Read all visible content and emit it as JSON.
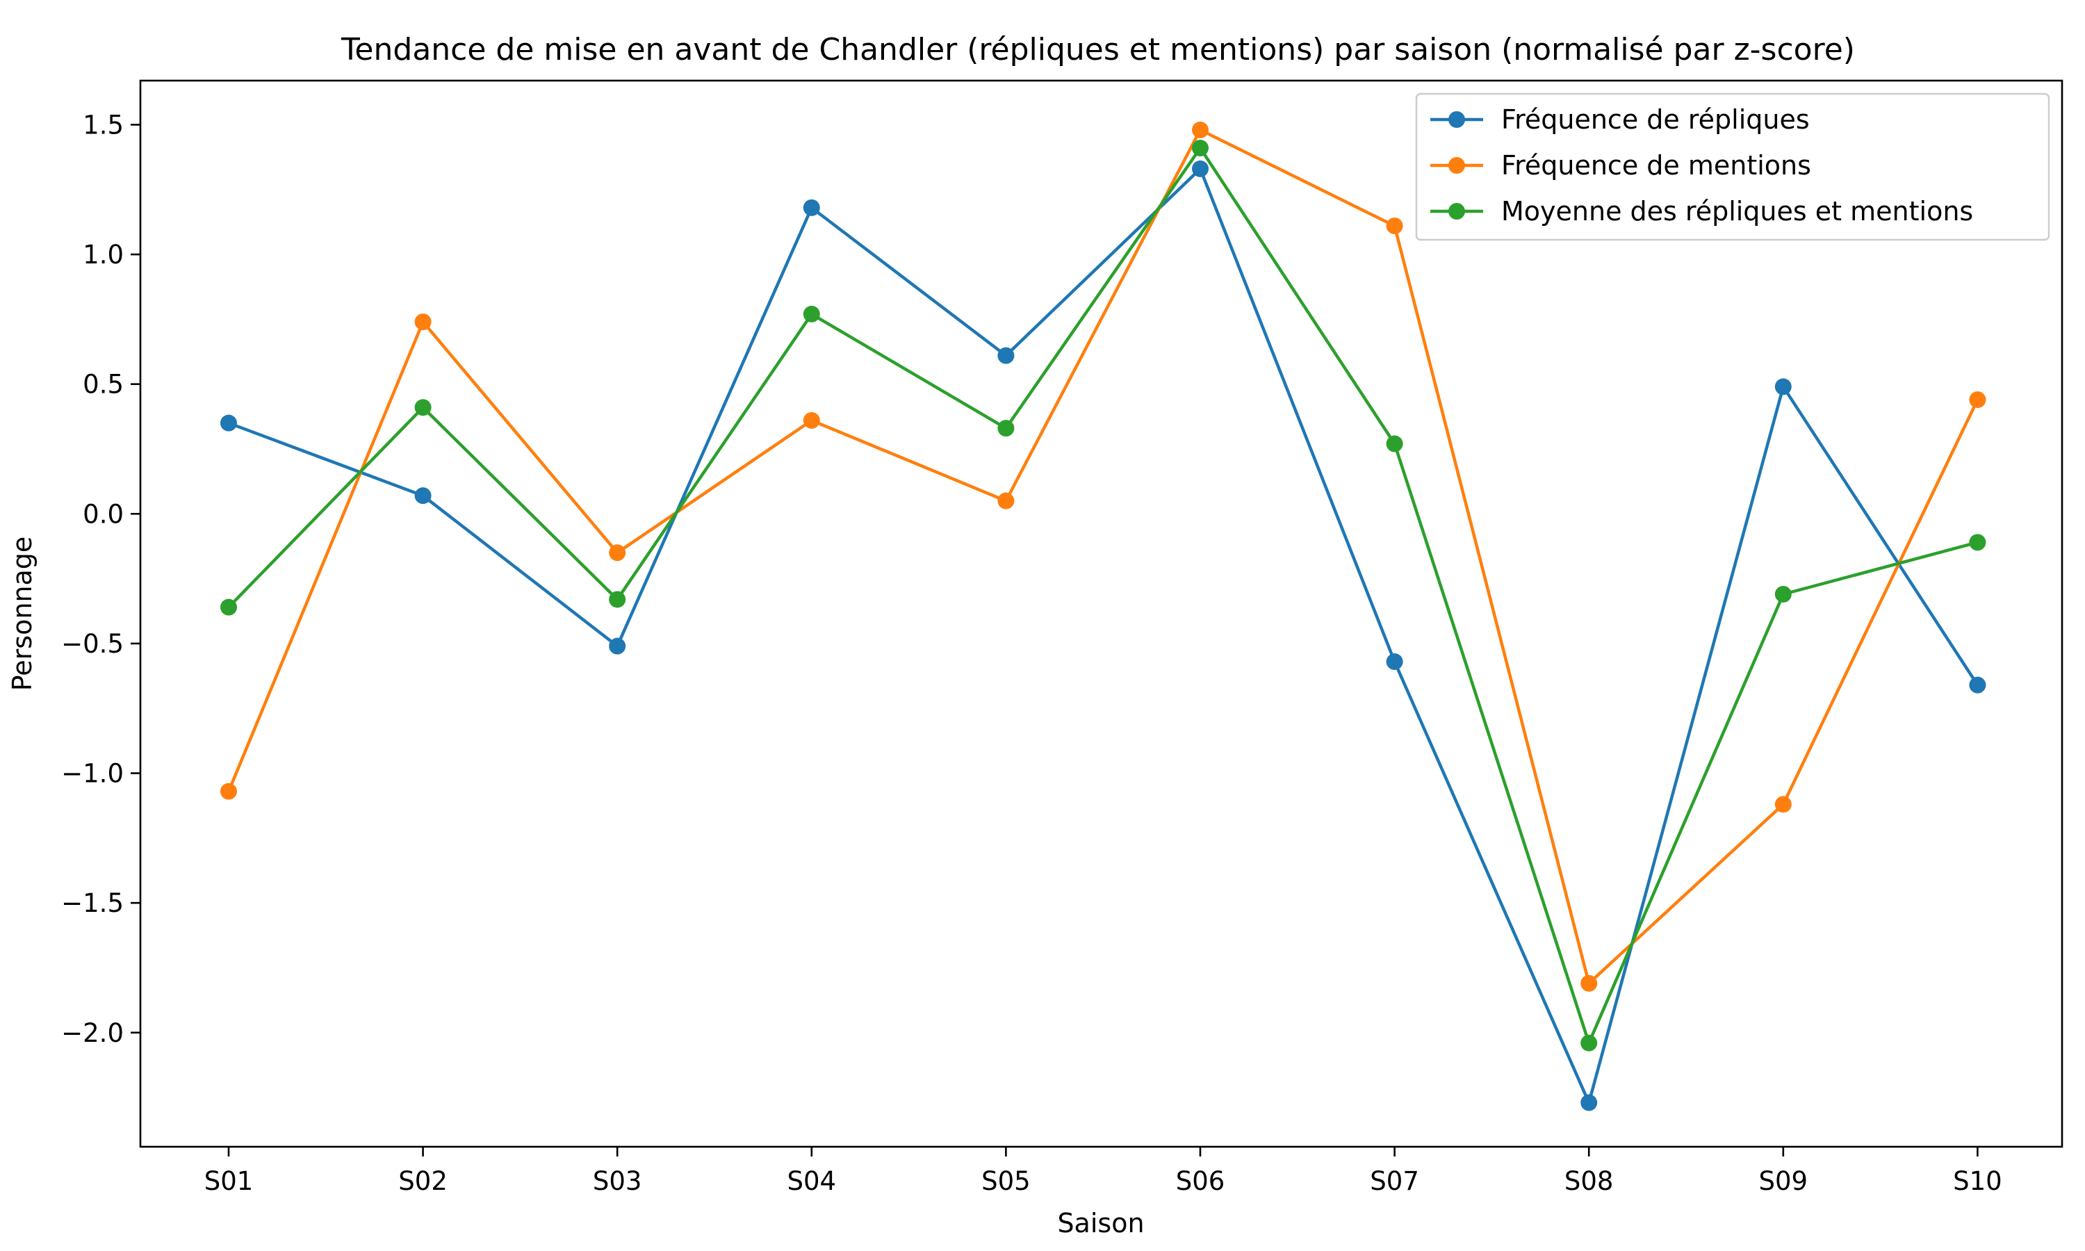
{
  "chart_data": {
    "type": "line",
    "title": "Tendance de mise en avant de Chandler (répliques et mentions) par saison (normalisé par z-score)",
    "xlabel": "Saison",
    "ylabel": "Personnage",
    "categories": [
      "S01",
      "S02",
      "S03",
      "S04",
      "S05",
      "S06",
      "S07",
      "S08",
      "S09",
      "S10"
    ],
    "ylim": [
      -2.44,
      1.67
    ],
    "yticks": [
      1.5,
      1.0,
      0.5,
      0.0,
      -0.5,
      -1.0,
      -1.5,
      -2.0
    ],
    "ytick_labels": [
      "1.5",
      "1.0",
      "0.5",
      "0.0",
      "−0.5",
      "−1.0",
      "−1.5",
      "−2.0"
    ],
    "grid": false,
    "legend_position": "top-right",
    "series": [
      {
        "name": "Fréquence de répliques",
        "color": "#1f77b4",
        "marker": "circle",
        "values": [
          0.35,
          0.07,
          -0.51,
          1.18,
          0.61,
          1.33,
          -0.57,
          -2.27,
          0.49,
          -0.66
        ]
      },
      {
        "name": "Fréquence de mentions",
        "color": "#ff7f0e",
        "marker": "circle",
        "values": [
          -1.07,
          0.74,
          -0.15,
          0.36,
          0.05,
          1.48,
          1.11,
          -1.81,
          -1.12,
          0.44
        ]
      },
      {
        "name": "Moyenne des répliques et mentions",
        "color": "#2ca02c",
        "marker": "circle",
        "values": [
          -0.36,
          0.41,
          -0.33,
          0.77,
          0.33,
          1.41,
          0.27,
          -2.04,
          -0.31,
          -0.11
        ]
      }
    ]
  }
}
